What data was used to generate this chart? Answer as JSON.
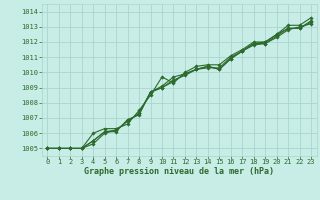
{
  "xlabel": "Graphe pression niveau de la mer (hPa)",
  "ylim": [
    1004.5,
    1014.5
  ],
  "xlim": [
    -0.5,
    23.5
  ],
  "yticks": [
    1005,
    1006,
    1007,
    1008,
    1009,
    1010,
    1011,
    1012,
    1013,
    1014
  ],
  "xticks": [
    0,
    1,
    2,
    3,
    4,
    5,
    6,
    7,
    8,
    9,
    10,
    11,
    12,
    13,
    14,
    15,
    16,
    17,
    18,
    19,
    20,
    21,
    22,
    23
  ],
  "bg_color": "#c8ede6",
  "grid_color": "#aad4cc",
  "line_color": "#2d6a2d",
  "line_width": 0.8,
  "marker": "D",
  "marker_size": 1.8,
  "series": [
    [
      1005.0,
      1005.0,
      1005.0,
      1005.0,
      1006.0,
      1006.3,
      1006.3,
      1006.6,
      1007.5,
      1008.5,
      1009.7,
      1009.3,
      1010.0,
      1010.4,
      1010.5,
      1010.5,
      1011.1,
      1011.5,
      1012.0,
      1012.0,
      1012.5,
      1013.1,
      1013.1,
      1013.6
    ],
    [
      1005.0,
      1005.0,
      1005.0,
      1005.0,
      1005.5,
      1006.1,
      1006.1,
      1006.9,
      1007.2,
      1008.7,
      1009.0,
      1009.5,
      1009.8,
      1010.2,
      1010.3,
      1010.3,
      1011.0,
      1011.4,
      1011.9,
      1011.9,
      1012.3,
      1012.8,
      1013.0,
      1013.2
    ],
    [
      1005.0,
      1005.0,
      1005.0,
      1005.0,
      1005.3,
      1006.0,
      1006.2,
      1006.8,
      1007.3,
      1008.7,
      1009.1,
      1009.7,
      1009.9,
      1010.2,
      1010.4,
      1010.2,
      1010.9,
      1011.4,
      1011.8,
      1011.9,
      1012.4,
      1012.9,
      1012.9,
      1013.3
    ],
    [
      1005.0,
      1005.0,
      1005.0,
      1005.0,
      1005.5,
      1006.1,
      1006.2,
      1006.8,
      1007.3,
      1008.7,
      1009.0,
      1009.4,
      1009.9,
      1010.2,
      1010.4,
      1010.2,
      1010.9,
      1011.4,
      1011.9,
      1012.0,
      1012.5,
      1012.9,
      1012.9,
      1013.4
    ]
  ],
  "label_fontsize": 6.0,
  "tick_fontsize": 5.0,
  "ytick_fontsize": 5.0,
  "label_color": "#2d6a2d",
  "tick_color": "#2d6a2d"
}
